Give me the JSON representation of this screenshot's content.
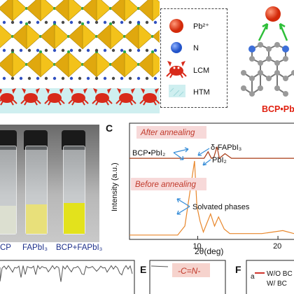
{
  "panel_a": {
    "legend": [
      {
        "label": "Pb²⁺",
        "icon": "red-sphere-icon"
      },
      {
        "label": "N",
        "icon": "blue-sphere-icon"
      },
      {
        "label": "LCM",
        "icon": "crab-icon"
      },
      {
        "label": "HTM",
        "icon": "htm-layer-icon"
      }
    ]
  },
  "panel_b": {
    "label": "BCP•PbI",
    "colors": {
      "pb": "#d9300f",
      "n": "#3d6fd8",
      "arrow": "#2fbf3a"
    }
  },
  "panel_c_photo": {
    "captions": [
      "CP",
      "FAPbI₃",
      "BCP+FAPbI₃"
    ],
    "liquid_colors": [
      "#dcdfd0",
      "#e8e07a",
      "#e3e21c"
    ]
  },
  "panel_c": {
    "letter": "C",
    "annotations": {
      "after": "After annealing",
      "before": "Before annealing",
      "bcp_pbi2": "BCP•PbI₂",
      "delta_fapbi3": "δ-FAPbI₃",
      "pbi2": "PbI₂",
      "solvated": "Solvated phases"
    },
    "colors": {
      "after": "#a83a14",
      "before": "#e8862a",
      "label_bg": "#f7d9d9",
      "arrow": "#3a8fd8"
    }
  },
  "chart_data": {
    "type": "line",
    "xlabel": "2θ(deg)",
    "ylabel": "Intensity (a.u.)",
    "xlim": [
      1.5,
      22
    ],
    "tick_labels": [
      "10",
      "20"
    ],
    "series": [
      {
        "x": [
          1.5,
          8.0,
          10.0,
          10.8,
          11.3,
          11.7,
          12.0,
          12.4,
          12.7,
          13.4,
          14.2,
          16.0,
          18.5,
          22.0
        ],
        "values": [
          18,
          18,
          18,
          18,
          35,
          18,
          20,
          48,
          18,
          30,
          18,
          18,
          18,
          18
        ]
      },
      {
        "x": [
          1.5,
          7.5,
          8.4,
          9.6,
          9.9,
          10.3,
          10.7,
          11.6,
          12.1,
          12.6,
          13.3,
          14.0,
          15.8,
          18.0,
          20.6,
          22.0
        ],
        "values": [
          2,
          2,
          14,
          100,
          40,
          20,
          6,
          30,
          14,
          26,
          10,
          4,
          4,
          4,
          8,
          4
        ]
      }
    ]
  },
  "bottom": {
    "panel_e_letter": "E",
    "panel_e_title": "-C=N-",
    "panel_f_letter": "F",
    "panel_f_legend": [
      "W/O BC",
      "W/ BC"
    ],
    "colors": {
      "e_label_bg": "#f6d3cd",
      "e_label_text": "#c0392b",
      "f_legend_line": "#d0342c"
    }
  }
}
